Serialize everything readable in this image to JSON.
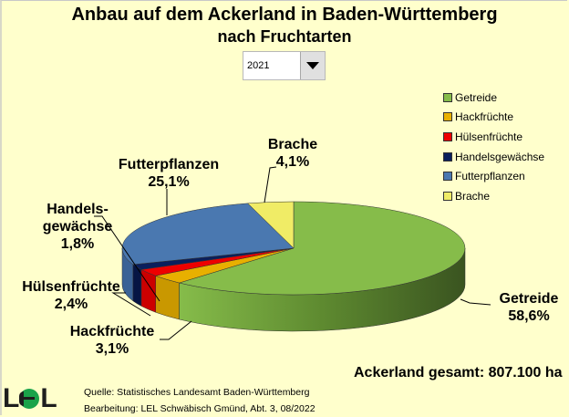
{
  "title": "Anbau auf dem Ackerland in Baden-Württemberg",
  "subtitle": "nach Fruchtarten",
  "year_select": {
    "value": "2021",
    "icon": "chevron-down-icon"
  },
  "legend": [
    {
      "label": "Getreide",
      "color": "#86bc4a"
    },
    {
      "label": "Hackfrüchte",
      "color": "#e8b000"
    },
    {
      "label": "Hülsenfrüchte",
      "color": "#ee0000"
    },
    {
      "label": "Handelsgewächse",
      "color": "#0a1f5c"
    },
    {
      "label": "Futterpflanzen",
      "color": "#4a78b0"
    },
    {
      "label": "Brache",
      "color": "#f0ec66"
    }
  ],
  "labels": {
    "getreide": {
      "name": "Getreide",
      "value": "58,6%"
    },
    "hackfruechte": {
      "name": "Hackfrüchte",
      "value": "3,1%"
    },
    "huelsenfruechte": {
      "name": "Hülsenfrüchte",
      "value": "2,4%"
    },
    "handelsgewaechse": {
      "name1": "Handels-",
      "name2": "gewächse",
      "value": "1,8%"
    },
    "futterpflanzen": {
      "name": "Futterpflanzen",
      "value": "25,1%"
    },
    "brache": {
      "name": "Brache",
      "value": "4,1%"
    }
  },
  "total": "Ackerland gesamt:  807.100 ha",
  "logo": "LEL",
  "source_line1": "Quelle: Statistisches Landesamt Baden-Württemberg",
  "source_line2": "Bearbeitung: LEL Schwäbisch Gmünd, Abt. 3, 08/2022",
  "chart_data": {
    "type": "pie",
    "title": "Anbau auf dem Ackerland in Baden-Württemberg",
    "subtitle": "nach Fruchtarten",
    "year": "2021",
    "categories": [
      "Getreide",
      "Hackfrüchte",
      "Hülsenfrüchte",
      "Handelsgewächse",
      "Futterpflanzen",
      "Brache"
    ],
    "values": [
      58.6,
      3.1,
      2.4,
      1.8,
      25.1,
      4.1
    ],
    "unit": "%",
    "colors": [
      "#86bc4a",
      "#e8b000",
      "#ee0000",
      "#0a1f5c",
      "#4a78b0",
      "#f0ec66"
    ],
    "side_colors": [
      "#5e8a30",
      "#c99800",
      "#cc0000",
      "#061544",
      "#3a6296",
      "#d0cc50"
    ],
    "total_label": "Ackerland gesamt: 807.100 ha",
    "style": "3d",
    "legend_position": "right"
  }
}
